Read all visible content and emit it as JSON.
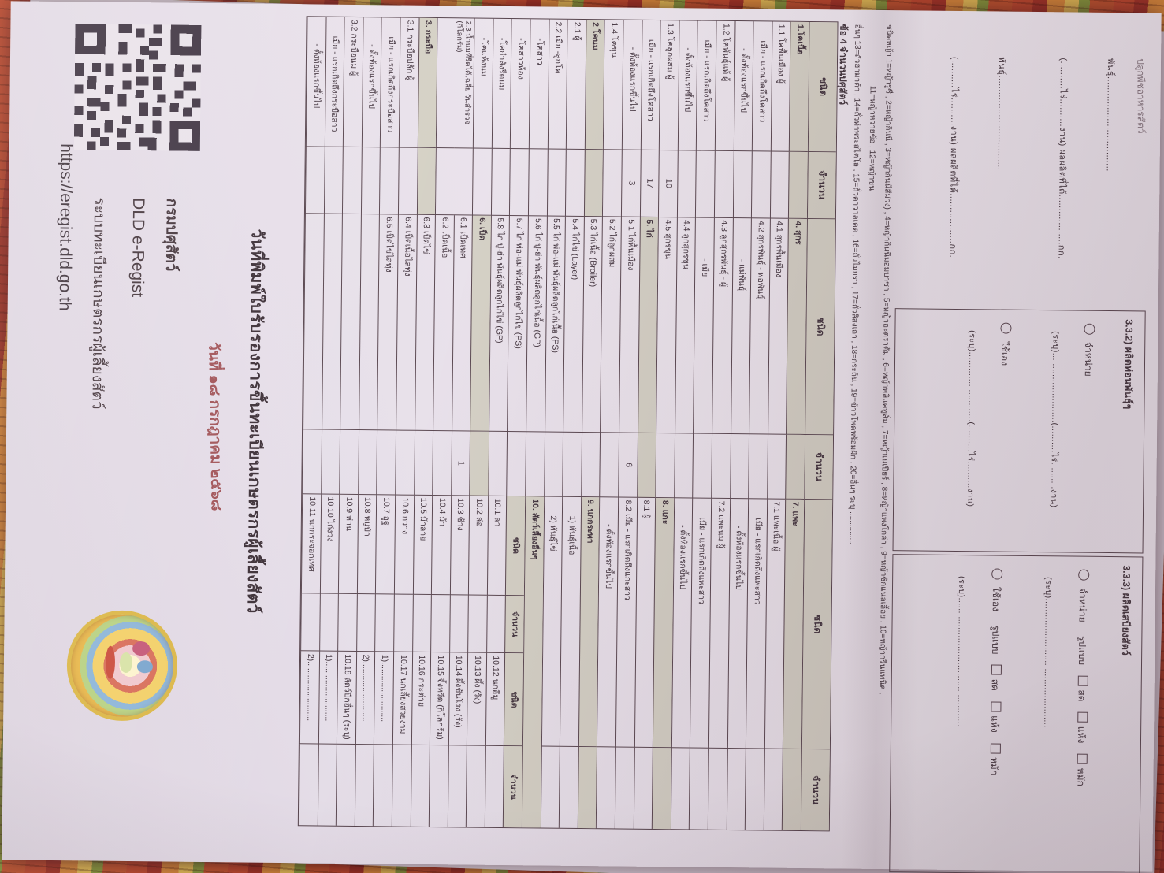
{
  "colors": {
    "paper": "#ece5ed",
    "ink": "#473a42",
    "table_line": "#5d4b54",
    "section_shade": "#d5d1c6",
    "stamp_red": "#983e42",
    "mat_red": "#bf4a2e",
    "mat_yellow": "#e3bd55",
    "mat_green": "#87993d"
  },
  "top_left_cut": {
    "line1": "ปลูกพืชอาหารสัตว์",
    "line2": "พันธุ์..................................",
    "line3": "(..........ไร่..........งาน) ผลผลิตที่ได้..................กก.",
    "line4": "พันธุ์..................................",
    "line5": "(..........ไร่..........งาน) ผลผลิตที่ได้..................กก."
  },
  "box_332": {
    "title": "3.3.2) ผลิตท่อนพันธุ์ๆ",
    "opt1_radio": "จำหน่าย",
    "opt1_line": "(ระบุ)..........................(..........ไร่..........งาน)",
    "opt2_radio": "ใช้เอง",
    "opt2_line": "(ระบุ)..........................(..........ไร่..........งาน)"
  },
  "box_333": {
    "title": "3.3.3) ผลิตเสบียงสัตว์",
    "opt1_radio": "จำหน่าย",
    "opt2_radio": "ใช้เอง",
    "form_label": "รูปแบบ",
    "forms": [
      "สด",
      "แห้ง",
      "หมัก"
    ],
    "opt1_line": "(ระบุ)................................................",
    "opt2_line": "(ระบุ)................................................"
  },
  "notes": {
    "line1": "ชนิดหญ้า   1=หญ้ารูซี่ , 2=หญ้ากินนี , 3=หญ้ากินนีสีม่วง) , 4=หญ้ากินนีมอมบาซา , 5=หญ้าอะตราตัม , 6=หญ้าพลิแคทูลั่ม , 7=หญ้าเนเปียร์ , 8=หญ้าแพงโกล่า , 9=หญ้าซิกแนลเลื้อย , 10=หญ้ากรีนแพนิค ,",
    "line2": "11=หญ้าหวายข้อ , 12=หญ้าขน",
    "line3": "อื่นๆ   13=ถั่วฮามาต้า , 14=ถั่วท่าพระสไตโล , 15=ถั่วคาวาลเคด , 16=ถั่วไมยรา , 17=ถั่วลิสงเถา , 18=กระถิน , 19=ข้าวโพดพร้อมฝัก , 20=อื่นๆ ระบุ ..............."
  },
  "section4_title": "ข้อ 4 จำนวนปศุสัตว์",
  "table": {
    "headers": [
      "ชนิด",
      "จำนวน",
      "ชนิด",
      "จำนวน",
      "ชนิด",
      "จำนวน"
    ],
    "sub_headers": [
      "ชนิด",
      "จำนวน",
      "ชนิด",
      "จำนวน"
    ],
    "col1": [
      {
        "l": "1.โคเนื้อ",
        "v": "",
        "s": 1
      },
      {
        "l": "1.1 โคพื้นเมือง   ผู้",
        "v": ""
      },
      {
        "l": "เมีย - แรกเกิดถึงโคสาว",
        "v": "",
        "ind": 1
      },
      {
        "l": "- ตั้งท้องแรกขึ้นไป",
        "v": "",
        "ind": 2
      },
      {
        "l": "1.2 โคพันธุ์แท้   ผู้",
        "v": ""
      },
      {
        "l": "เมีย - แรกเกิดถึงโคสาว",
        "v": "",
        "ind": 1
      },
      {
        "l": "- ตั้งท้องแรกขึ้นไป",
        "v": "",
        "ind": 2
      },
      {
        "l": "1.3 โคลูกผสม   ผู้",
        "v": "10"
      },
      {
        "l": "เมีย - แรกเกิดถึงโคสาว",
        "v": "17",
        "ind": 1
      },
      {
        "l": "- ตั้งท้องแรกขึ้นไป",
        "v": "3",
        "ind": 2
      },
      {
        "l": "1.4 โคขุน",
        "v": ""
      },
      {
        "l": "2 โคนม",
        "v": "",
        "s": 1
      },
      {
        "l": "2.1 ผู้",
        "v": ""
      },
      {
        "l": "2.2 เมีย -ลูกโค",
        "v": ""
      },
      {
        "l": "-โคสาว",
        "v": "",
        "ind": 1
      },
      {
        "l": "-โคสาวท้อง",
        "v": "",
        "ind": 1
      },
      {
        "l": "-โคกำลังรีดนม",
        "v": "",
        "ind": 1
      },
      {
        "l": "-โคแห้งนม",
        "v": "",
        "ind": 1
      },
      {
        "l": "2.3 น้ำนมที่รีดได้เฉลี่ย วันสำรวจ (กิโลกรัม)",
        "v": "",
        "tall": 1
      },
      {
        "l": "",
        "v": "",
        "cont": 1
      },
      {
        "l": "3. กระบือ",
        "v": "",
        "s": 1
      },
      {
        "l": "3.1 กระบือปลัก   ผู้",
        "v": ""
      },
      {
        "l": "เมีย - แรกเกิดถึงกระบือสาว",
        "v": "",
        "ind": 1
      },
      {
        "l": "- ตั้งท้องแรกขึ้นไป",
        "v": "",
        "ind": 2
      },
      {
        "l": "3.2 กระบือนม   ผู้",
        "v": ""
      },
      {
        "l": "เมีย - แรกเกิดถึงกระบือสาว",
        "v": "",
        "ind": 1
      },
      {
        "l": "- ตั้งท้องแรกขึ้นไป",
        "v": "",
        "ind": 2
      }
    ],
    "col2": [
      {
        "l": "4. สุกร",
        "v": "",
        "s": 1
      },
      {
        "l": "4.1 สุกรพื้นเมือง",
        "v": ""
      },
      {
        "l": "4.2 สุกรพันธุ์ - พ่อพันธุ์",
        "v": ""
      },
      {
        "l": "- แม่พันธุ์",
        "v": "",
        "ind": 3
      },
      {
        "l": "4.3 ลูกสุกรพันธุ์ - ผู้",
        "v": ""
      },
      {
        "l": "- เมีย",
        "v": "",
        "ind": 3
      },
      {
        "l": "4.4 ลูกสุกรขุน",
        "v": ""
      },
      {
        "l": "4.5 สุกรขุน",
        "v": ""
      },
      {
        "l": "5. ไก่",
        "v": "",
        "s": 1
      },
      {
        "l": "5.1 ไก่พื้นเมือง",
        "v": "6"
      },
      {
        "l": "5.2 ไก่ลูกผสม",
        "v": ""
      },
      {
        "l": "5.3 ไก่เนื้อ (Broiler)",
        "v": ""
      },
      {
        "l": "5.4 ไก่ไข่ (Layer)",
        "v": ""
      },
      {
        "l": "5.5 ไก่ พ่อ-แม่ พันธุ์ผลิตลูกไก่เนื้อ (PS)",
        "v": ""
      },
      {
        "l": "5.6 ไก่ ปู่-ย่า พันธุ์ผลิตลูกไก่เนื้อ (GP)",
        "v": ""
      },
      {
        "l": "5.7 ไก่ พ่อ-แม่ พันธุ์ผลิตลูกไก่ไข่ (PS)",
        "v": ""
      },
      {
        "l": "5.8 ไก่ ปู่-ย่า พันธุ์ผลิตลูกไก่ไข่ (GP)",
        "v": ""
      },
      {
        "l": "6. เป็ด",
        "v": "",
        "s": 1
      },
      {
        "l": "6.1 เป็ดเทศ",
        "v": "1"
      },
      {
        "l": "6.2 เป็ดเนื้อ",
        "v": ""
      },
      {
        "l": "6.3 เป็ดไข่",
        "v": ""
      },
      {
        "l": "6.4 เป็ดเนื้อไล่ทุ่ง",
        "v": ""
      },
      {
        "l": "6.5 เป็ดไข่ไล่ทุ่ง",
        "v": ""
      },
      {
        "l": "",
        "v": ""
      },
      {
        "l": "",
        "v": ""
      },
      {
        "l": "",
        "v": ""
      },
      {
        "l": "",
        "v": ""
      }
    ],
    "col3": {
      "rows": [
        {
          "l": "7. แพะ",
          "v": "",
          "s": 1
        },
        {
          "l": "7.1 แพะเนื้อ   ผู้",
          "v": ""
        },
        {
          "l": "เมีย - แรกเกิดถึงแพะสาว",
          "v": "",
          "ind": 1
        },
        {
          "l": "- ตั้งท้องแรกขึ้นไป",
          "v": "",
          "ind": 2
        },
        {
          "l": "7.2 แพะนม   ผู้",
          "v": ""
        },
        {
          "l": "เมีย - แรกเกิดถึงแพะสาว",
          "v": "",
          "ind": 1
        },
        {
          "l": "- ตั้งท้องแรกขึ้นไป",
          "v": "",
          "ind": 2
        },
        {
          "l": "8. แกะ",
          "v": "",
          "s": 1
        },
        {
          "l": "8.1 ผู้",
          "v": ""
        },
        {
          "l": "8.2 เมีย - แรกเกิดถึงแกะสาว",
          "v": ""
        },
        {
          "l": "- ตั้งท้องแรกขึ้นไป",
          "v": "",
          "ind": 2
        },
        {
          "l": "9. นกกระทา",
          "v": "",
          "s": 1
        },
        {
          "l": "1) พันธุ์เนื้อ",
          "v": "",
          "ind": 1
        },
        {
          "l": "2) พันธุ์ไข่",
          "v": "",
          "ind": 1
        }
      ],
      "others_header": "10. สัตว์เลี้ยงอื่นๆ",
      "sub_rows": [
        {
          "a": "10.1 ลา",
          "av": "",
          "b": "10.12 นกอีมู",
          "bv": ""
        },
        {
          "a": "10.2 ล่อ",
          "av": "",
          "b": "10.13 ผึ้ง (รัง)",
          "bv": ""
        },
        {
          "a": "10.3 ช้าง",
          "av": "",
          "b": "10.14 ผึ้งชันโรง (รัง)",
          "bv": ""
        },
        {
          "a": "10.4 ม้า",
          "av": "",
          "b": "10.15 จิ้งหรีด (กิโลกรัม)",
          "bv": ""
        },
        {
          "a": "10.5 ม้าลาย",
          "av": "",
          "b": "10.16 กระต่าย",
          "bv": ""
        },
        {
          "a": "10.6 กวาง",
          "av": "",
          "b": "10.17 นกเลี้ยงสวยงาม (ระบุ)",
          "bv": ""
        },
        {
          "a": "10.7 อูฐ",
          "av": "",
          "b": "1)..........................",
          "bv": ""
        },
        {
          "a": "10.8 หมูป่า",
          "av": "",
          "b": "2)..........................",
          "bv": ""
        },
        {
          "a": "10.9 ห่าน",
          "av": "",
          "b": "10.18 สัตว์ปีกอื่นๆ (ระบุ)",
          "bv": ""
        },
        {
          "a": "10.10 ไก่งวง",
          "av": "",
          "b": "1)..........................",
          "bv": ""
        },
        {
          "a": "10.11 นกกระจอกเทศ",
          "av": "",
          "b": "2)..........................",
          "bv": ""
        }
      ]
    }
  },
  "footer": {
    "title": "วันที่พิมพ์ใบรับรองการขึ้นทะเบียนเกษตรกรผู้เลี้ยงสัตว์",
    "date_stamp": "วันที่ ๑๘ กรกฎาคม ๒๕๖๘"
  },
  "qr_block": {
    "agency": "กรมปศุสัตว์",
    "system_short": "DLD e-Regist",
    "system_full": "ระบบทะเบียนเกษตรกรผู้เลี้ยงสัตว์",
    "url": "https://eregist.dld.go.th"
  }
}
